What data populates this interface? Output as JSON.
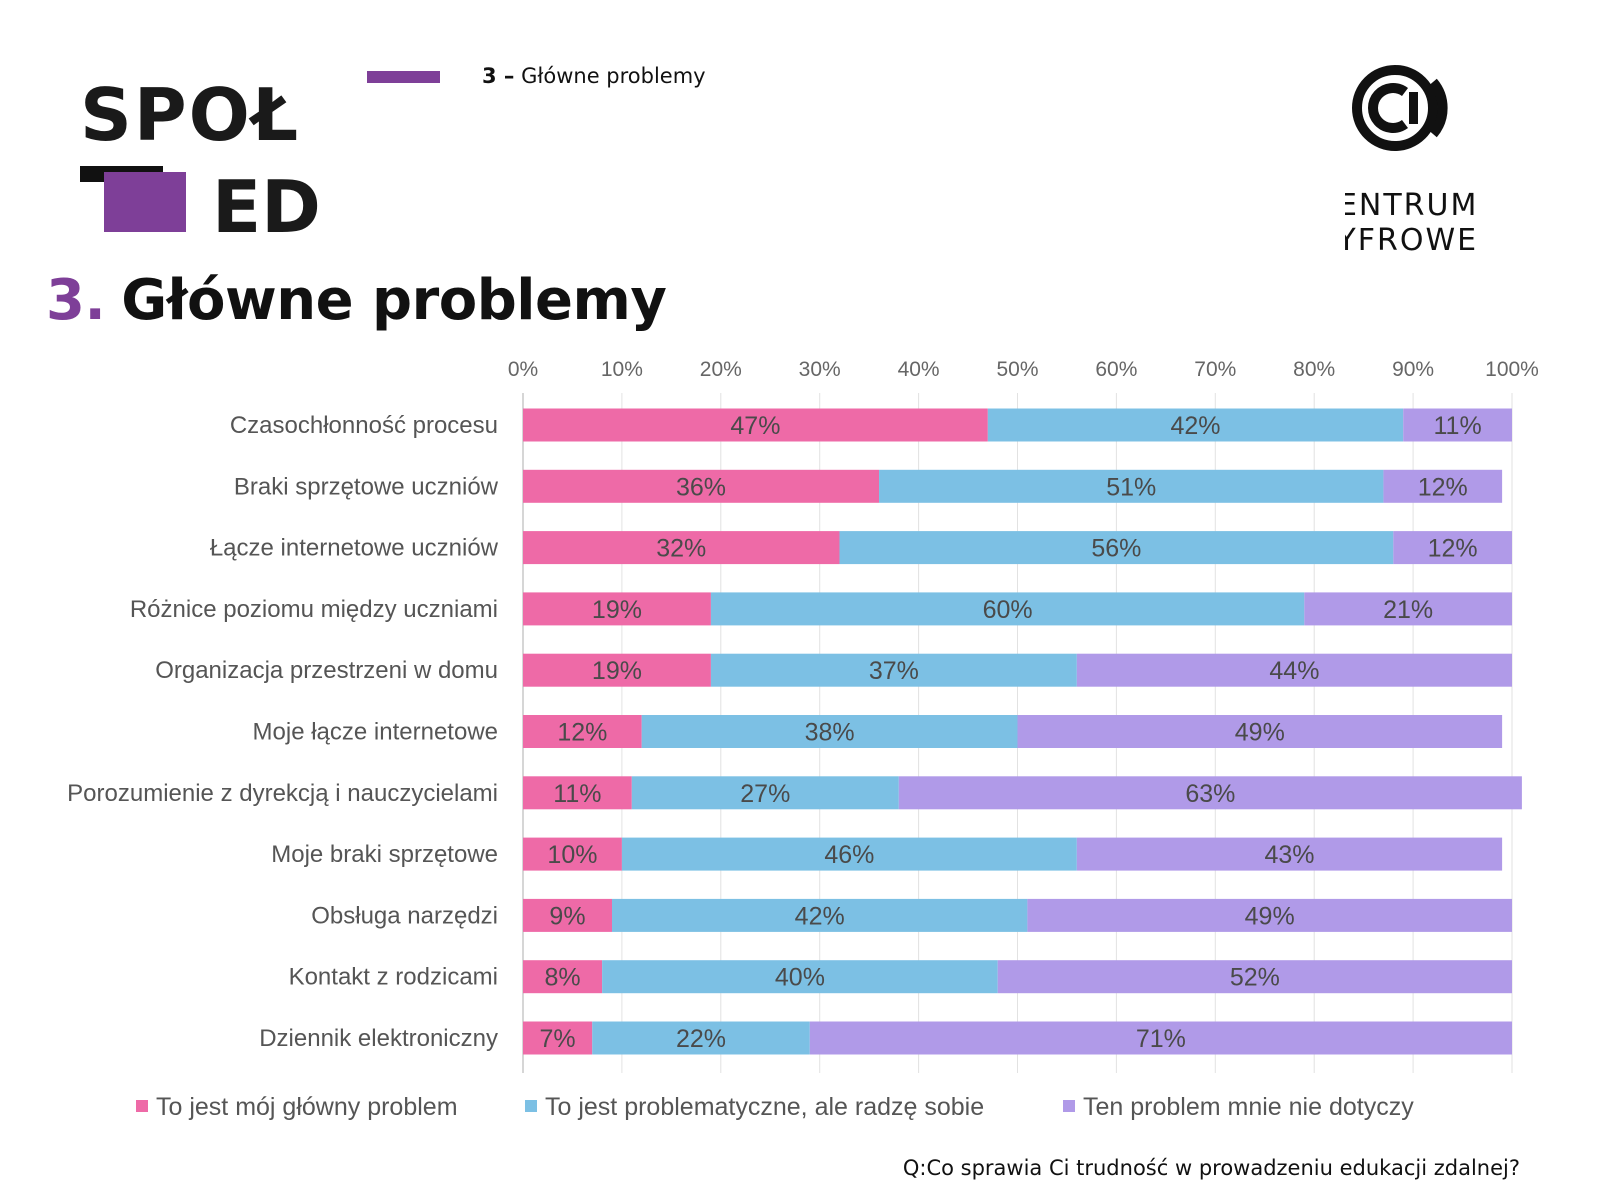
{
  "header": {
    "section_number": "3 –",
    "section_label": "Główne problemy"
  },
  "logo_left": {
    "text_top": "SPOŁ",
    "text_bottom": "ED"
  },
  "logo_right": {
    "text_line1": "CENTRUM",
    "text_line2": "CYFROWE"
  },
  "page_title": {
    "number": "3.",
    "text": "Główne problemy"
  },
  "question": "Q:Co sprawia Ci trudność w prowadzeniu edukacji zdalnej?",
  "colors": {
    "accent": "#7e3f98",
    "main_problem": "#ee6aa7",
    "manageable": "#7cc0e4",
    "not_applicable": "#b09ae8"
  },
  "chart_data": {
    "type": "bar",
    "orientation": "horizontal",
    "stacked": true,
    "categories": [
      "Czasochłonność procesu",
      "Braki sprzętowe uczniów",
      "Łącze internetowe uczniów",
      "Różnice poziomu między uczniami",
      "Organizacja przestrzeni w domu",
      "Moje łącze internetowe",
      "Porozumienie z dyrekcją i nauczycielami",
      "Moje braki sprzętowe",
      "Obsługa narzędzi",
      "Kontakt z rodzicami",
      "Dziennik elektroniczny"
    ],
    "series": [
      {
        "name": "To jest mój główny problem",
        "color": "#ee6aa7",
        "values": [
          47,
          36,
          32,
          19,
          19,
          12,
          11,
          10,
          9,
          8,
          7
        ]
      },
      {
        "name": "To jest problematyczne, ale radzę sobie",
        "color": "#7cc0e4",
        "values": [
          42,
          51,
          56,
          60,
          37,
          38,
          27,
          46,
          42,
          40,
          22
        ]
      },
      {
        "name": "Ten problem mnie nie dotyczy",
        "color": "#b09ae8",
        "values": [
          11,
          12,
          12,
          21,
          44,
          49,
          63,
          43,
          49,
          52,
          71
        ]
      }
    ],
    "xlim": [
      0,
      100
    ],
    "xticks": [
      "0%",
      "10%",
      "20%",
      "30%",
      "40%",
      "50%",
      "60%",
      "70%",
      "80%",
      "90%",
      "100%"
    ],
    "value_suffix": "%",
    "axis_position": "top",
    "grid": true,
    "legend_position": "bottom"
  }
}
